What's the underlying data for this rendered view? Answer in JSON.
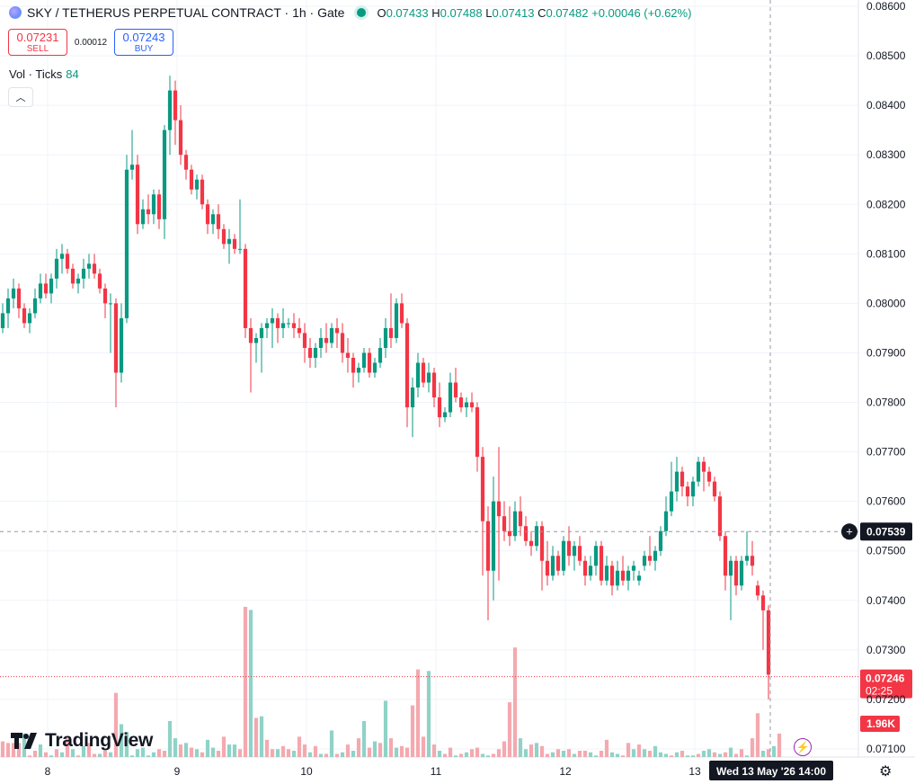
{
  "header": {
    "title": "SKY / TETHERUS PERPETUAL CONTRACT · 1h · Gate",
    "ohlc": [
      {
        "key": "O",
        "value": "0.07433"
      },
      {
        "key": "H",
        "value": "0.07488"
      },
      {
        "key": "L",
        "value": "0.07413"
      },
      {
        "key": "C",
        "value": "0.07482"
      }
    ],
    "change": "+0.00046 (+0.62%)"
  },
  "trade": {
    "sell_price": "0.07231",
    "sell_label": "SELL",
    "spread": "0.00012",
    "buy_price": "0.07243",
    "buy_label": "BUY"
  },
  "indicator": {
    "name": "Vol · Ticks",
    "value": "84"
  },
  "collapse_icon": "chevron-up-icon",
  "branding": {
    "name": "TradingView"
  },
  "colors": {
    "up": "#089981",
    "down": "#f23645",
    "up_vol": "#8fd3c7",
    "down_vol": "#f4a9af"
  },
  "chart_data": {
    "type": "candlestick",
    "interval": "1h",
    "y_ticks": [
      "0.08600",
      "0.08500",
      "0.08400",
      "0.08300",
      "0.08200",
      "0.08100",
      "0.08000",
      "0.07900",
      "0.07800",
      "0.07700",
      "0.07600",
      "0.07500",
      "0.07400",
      "0.07300",
      "0.07200",
      "0.07100"
    ],
    "ylim": [
      0.0705,
      0.0862
    ],
    "x_ticks": [
      "8",
      "9",
      "10",
      "11",
      "12",
      "13"
    ],
    "crosshair_price": "0.07539",
    "crosshair_time": "Wed 13 May '26  14:00",
    "last_price": "0.07246",
    "countdown": "02:25",
    "volume_label": "1.96K",
    "candles": [
      [
        0.0795,
        0.08,
        0.0794,
        0.0798
      ],
      [
        0.0798,
        0.0803,
        0.0795,
        0.0801
      ],
      [
        0.0801,
        0.0805,
        0.0799,
        0.0803
      ],
      [
        0.0803,
        0.0804,
        0.0797,
        0.0799
      ],
      [
        0.0799,
        0.08,
        0.0795,
        0.0796
      ],
      [
        0.0796,
        0.0799,
        0.0794,
        0.0798
      ],
      [
        0.0798,
        0.0803,
        0.0797,
        0.0801
      ],
      [
        0.0801,
        0.0806,
        0.08,
        0.0804
      ],
      [
        0.0804,
        0.0806,
        0.0801,
        0.0802
      ],
      [
        0.0802,
        0.0806,
        0.08,
        0.0805
      ],
      [
        0.0805,
        0.0811,
        0.0803,
        0.0809
      ],
      [
        0.0809,
        0.0812,
        0.0806,
        0.081
      ],
      [
        0.081,
        0.0811,
        0.0806,
        0.0807
      ],
      [
        0.0807,
        0.0808,
        0.0803,
        0.0804
      ],
      [
        0.0804,
        0.0806,
        0.0802,
        0.0805
      ],
      [
        0.0805,
        0.0809,
        0.0803,
        0.0807
      ],
      [
        0.0807,
        0.081,
        0.0805,
        0.0808
      ],
      [
        0.0808,
        0.081,
        0.0805,
        0.0806
      ],
      [
        0.0806,
        0.0807,
        0.0802,
        0.0803
      ],
      [
        0.0803,
        0.0804,
        0.0797,
        0.08
      ],
      [
        0.08,
        0.0802,
        0.079,
        0.08
      ],
      [
        0.08,
        0.0801,
        0.0779,
        0.0786
      ],
      [
        0.0786,
        0.08,
        0.0784,
        0.0797
      ],
      [
        0.0797,
        0.083,
        0.0796,
        0.0827
      ],
      [
        0.0827,
        0.0835,
        0.0825,
        0.0828
      ],
      [
        0.0828,
        0.083,
        0.0814,
        0.0816
      ],
      [
        0.0816,
        0.0821,
        0.0815,
        0.0819
      ],
      [
        0.0819,
        0.0822,
        0.0816,
        0.0818
      ],
      [
        0.0818,
        0.0823,
        0.0816,
        0.0822
      ],
      [
        0.0822,
        0.0823,
        0.0815,
        0.0817
      ],
      [
        0.0817,
        0.0836,
        0.0813,
        0.0835
      ],
      [
        0.0835,
        0.0846,
        0.083,
        0.0843
      ],
      [
        0.0843,
        0.0845,
        0.0832,
        0.0837
      ],
      [
        0.0837,
        0.084,
        0.0828,
        0.083
      ],
      [
        0.083,
        0.0831,
        0.0825,
        0.0827
      ],
      [
        0.0827,
        0.0828,
        0.0822,
        0.0823
      ],
      [
        0.0823,
        0.0826,
        0.0821,
        0.0825
      ],
      [
        0.0825,
        0.0826,
        0.0819,
        0.082
      ],
      [
        0.082,
        0.0821,
        0.0814,
        0.0816
      ],
      [
        0.0816,
        0.0819,
        0.0814,
        0.0818
      ],
      [
        0.0818,
        0.082,
        0.0813,
        0.0815
      ],
      [
        0.0815,
        0.0816,
        0.0811,
        0.0812
      ],
      [
        0.0812,
        0.0815,
        0.0808,
        0.0813
      ],
      [
        0.0813,
        0.0814,
        0.081,
        0.0811
      ],
      [
        0.0811,
        0.0821,
        0.081,
        0.0811
      ],
      [
        0.0811,
        0.0812,
        0.0793,
        0.0795
      ],
      [
        0.0795,
        0.0797,
        0.0782,
        0.0792
      ],
      [
        0.0792,
        0.0794,
        0.0788,
        0.0793
      ],
      [
        0.0793,
        0.0796,
        0.0786,
        0.0795
      ],
      [
        0.0795,
        0.0797,
        0.0793,
        0.0796
      ],
      [
        0.0796,
        0.0799,
        0.0791,
        0.0797
      ],
      [
        0.0797,
        0.0798,
        0.0792,
        0.0795
      ],
      [
        0.0795,
        0.0799,
        0.0793,
        0.0796
      ],
      [
        0.0796,
        0.0797,
        0.0795,
        0.0796
      ],
      [
        0.0796,
        0.0798,
        0.0793,
        0.0795
      ],
      [
        0.0795,
        0.0797,
        0.0793,
        0.0794
      ],
      [
        0.0794,
        0.0796,
        0.0788,
        0.0791
      ],
      [
        0.0791,
        0.0793,
        0.0787,
        0.0789
      ],
      [
        0.0789,
        0.0792,
        0.0787,
        0.0791
      ],
      [
        0.0791,
        0.0795,
        0.0789,
        0.0793
      ],
      [
        0.0793,
        0.0796,
        0.079,
        0.0792
      ],
      [
        0.0792,
        0.0796,
        0.0791,
        0.0795
      ],
      [
        0.0795,
        0.0797,
        0.0791,
        0.0794
      ],
      [
        0.0794,
        0.0796,
        0.0788,
        0.079
      ],
      [
        0.079,
        0.0793,
        0.0786,
        0.0789
      ],
      [
        0.0789,
        0.079,
        0.0783,
        0.0786
      ],
      [
        0.0786,
        0.0788,
        0.0784,
        0.0787
      ],
      [
        0.0787,
        0.0791,
        0.0786,
        0.079
      ],
      [
        0.079,
        0.0791,
        0.0785,
        0.0786
      ],
      [
        0.0786,
        0.0789,
        0.0785,
        0.0788
      ],
      [
        0.0788,
        0.0793,
        0.0787,
        0.0791
      ],
      [
        0.0791,
        0.0797,
        0.0789,
        0.0795
      ],
      [
        0.0795,
        0.0802,
        0.0791,
        0.0793
      ],
      [
        0.0793,
        0.0801,
        0.0792,
        0.08
      ],
      [
        0.08,
        0.0802,
        0.0795,
        0.0796
      ],
      [
        0.0796,
        0.0797,
        0.0775,
        0.0779
      ],
      [
        0.0779,
        0.0785,
        0.0773,
        0.0783
      ],
      [
        0.0783,
        0.079,
        0.0781,
        0.0788
      ],
      [
        0.0788,
        0.0789,
        0.0783,
        0.0784
      ],
      [
        0.0784,
        0.0788,
        0.0782,
        0.0786
      ],
      [
        0.0786,
        0.0787,
        0.0779,
        0.0781
      ],
      [
        0.0781,
        0.0784,
        0.0775,
        0.0777
      ],
      [
        0.0777,
        0.0779,
        0.0776,
        0.0778
      ],
      [
        0.0778,
        0.0786,
        0.0777,
        0.0784
      ],
      [
        0.0784,
        0.0787,
        0.078,
        0.0781
      ],
      [
        0.0781,
        0.0782,
        0.0778,
        0.0779
      ],
      [
        0.0779,
        0.0781,
        0.0777,
        0.078
      ],
      [
        0.078,
        0.0782,
        0.0778,
        0.0779
      ],
      [
        0.0779,
        0.078,
        0.0766,
        0.0769
      ],
      [
        0.0769,
        0.0771,
        0.0745,
        0.0756
      ],
      [
        0.0756,
        0.0759,
        0.0736,
        0.0746
      ],
      [
        0.0746,
        0.0765,
        0.074,
        0.076
      ],
      [
        0.076,
        0.0771,
        0.0744,
        0.0757
      ],
      [
        0.0757,
        0.076,
        0.0752,
        0.0754
      ],
      [
        0.0754,
        0.0759,
        0.0751,
        0.0753
      ],
      [
        0.0753,
        0.076,
        0.0752,
        0.0758
      ],
      [
        0.0758,
        0.0761,
        0.0753,
        0.0755
      ],
      [
        0.0755,
        0.0757,
        0.0751,
        0.0752
      ],
      [
        0.0752,
        0.0754,
        0.0749,
        0.0751
      ],
      [
        0.0751,
        0.0756,
        0.075,
        0.0755
      ],
      [
        0.0755,
        0.0756,
        0.0742,
        0.0748
      ],
      [
        0.0748,
        0.0752,
        0.0743,
        0.0745
      ],
      [
        0.0745,
        0.0751,
        0.0744,
        0.0749
      ],
      [
        0.0749,
        0.075,
        0.0745,
        0.0746
      ],
      [
        0.0746,
        0.0753,
        0.0745,
        0.0752
      ],
      [
        0.0752,
        0.0755,
        0.0747,
        0.0749
      ],
      [
        0.0749,
        0.0752,
        0.0746,
        0.0751
      ],
      [
        0.0751,
        0.0753,
        0.0747,
        0.0748
      ],
      [
        0.0748,
        0.0749,
        0.0743,
        0.0745
      ],
      [
        0.0745,
        0.0749,
        0.0744,
        0.0747
      ],
      [
        0.0747,
        0.0752,
        0.0745,
        0.0751
      ],
      [
        0.0751,
        0.0752,
        0.0743,
        0.0744
      ],
      [
        0.0744,
        0.0749,
        0.0743,
        0.0747
      ],
      [
        0.0747,
        0.0748,
        0.0741,
        0.0743
      ],
      [
        0.0743,
        0.0748,
        0.0742,
        0.0746
      ],
      [
        0.0746,
        0.0749,
        0.0743,
        0.0744
      ],
      [
        0.0744,
        0.0747,
        0.0742,
        0.0746
      ],
      [
        0.0746,
        0.0748,
        0.0744,
        0.0747
      ],
      [
        0.0744,
        0.0746,
        0.0743,
        0.0745
      ],
      [
        0.0747,
        0.075,
        0.0746,
        0.0749
      ],
      [
        0.0749,
        0.0753,
        0.0747,
        0.0748
      ],
      [
        0.0748,
        0.0751,
        0.0746,
        0.075
      ],
      [
        0.075,
        0.0755,
        0.0749,
        0.0754
      ],
      [
        0.0754,
        0.0761,
        0.0753,
        0.0758
      ],
      [
        0.0758,
        0.0768,
        0.0757,
        0.0762
      ],
      [
        0.0762,
        0.0769,
        0.076,
        0.0766
      ],
      [
        0.0766,
        0.0767,
        0.0761,
        0.0763
      ],
      [
        0.0763,
        0.0764,
        0.0759,
        0.0761
      ],
      [
        0.0761,
        0.0765,
        0.0759,
        0.0764
      ],
      [
        0.0764,
        0.0769,
        0.0763,
        0.0768
      ],
      [
        0.0768,
        0.0769,
        0.0762,
        0.0766
      ],
      [
        0.0766,
        0.0767,
        0.0763,
        0.0764
      ],
      [
        0.0764,
        0.0765,
        0.076,
        0.0761
      ],
      [
        0.0761,
        0.0762,
        0.0752,
        0.0753
      ],
      [
        0.0753,
        0.0754,
        0.0742,
        0.0745
      ],
      [
        0.0745,
        0.0749,
        0.0736,
        0.0748
      ],
      [
        0.0748,
        0.0749,
        0.0741,
        0.0743
      ],
      [
        0.0743,
        0.0749,
        0.0742,
        0.0748
      ],
      [
        0.0748,
        0.0754,
        0.0747,
        0.0749
      ],
      [
        0.0749,
        0.0752,
        0.0745,
        0.0747
      ],
      [
        0.0743,
        0.0744,
        0.074,
        0.0741
      ],
      [
        0.0741,
        0.0742,
        0.073,
        0.0738
      ],
      [
        0.0738,
        0.0739,
        0.072,
        0.0725
      ]
    ],
    "volumes": [
      [
        0,
        1
      ],
      [
        0,
        0.9
      ],
      [
        0,
        0.9
      ],
      [
        0,
        0.9
      ],
      [
        1,
        1.5
      ],
      [
        0,
        0.1
      ],
      [
        0,
        0.4
      ],
      [
        1,
        0.8
      ],
      [
        0,
        0.3
      ],
      [
        1,
        0.1
      ],
      [
        0,
        0.5
      ],
      [
        1,
        0.3
      ],
      [
        0,
        1.2
      ],
      [
        1,
        0.5
      ],
      [
        0,
        0.1
      ],
      [
        1,
        0.7
      ],
      [
        0,
        0.9
      ],
      [
        0,
        0.2
      ],
      [
        1,
        0.2
      ],
      [
        0,
        0.4
      ],
      [
        1,
        0.3
      ],
      [
        0,
        4.1
      ],
      [
        1,
        2.1
      ],
      [
        1,
        1.6
      ],
      [
        1,
        0.1
      ],
      [
        1,
        0.5
      ],
      [
        1,
        0.6
      ],
      [
        1,
        0.1
      ],
      [
        1,
        0.3
      ],
      [
        0,
        0.5
      ],
      [
        0,
        0.4
      ],
      [
        1,
        2.3
      ],
      [
        1,
        1.2
      ],
      [
        0,
        0.8
      ],
      [
        1,
        0.9
      ],
      [
        0,
        0.6
      ],
      [
        1,
        0.5
      ],
      [
        0,
        0.3
      ],
      [
        1,
        1.1
      ],
      [
        1,
        0.6
      ],
      [
        0,
        0.4
      ],
      [
        0,
        1.3
      ],
      [
        1,
        0.8
      ],
      [
        1,
        0.8
      ],
      [
        0,
        0.5
      ],
      [
        0,
        9.6
      ],
      [
        1,
        9.4
      ],
      [
        0,
        2.5
      ],
      [
        1,
        2.6
      ],
      [
        0,
        1.1
      ],
      [
        0,
        0.5
      ],
      [
        1,
        0.5
      ],
      [
        0,
        0.7
      ],
      [
        0,
        0.5
      ],
      [
        1,
        0.4
      ],
      [
        0,
        1.3
      ],
      [
        0,
        0.8
      ],
      [
        1,
        0.3
      ],
      [
        0,
        0.7
      ],
      [
        1,
        0.2
      ],
      [
        0,
        0.2
      ],
      [
        1,
        1.7
      ],
      [
        0,
        0.2
      ],
      [
        1,
        0.3
      ],
      [
        0,
        0.8
      ],
      [
        1,
        0.4
      ],
      [
        0,
        1.2
      ],
      [
        1,
        2.3
      ],
      [
        0,
        0.6
      ],
      [
        1,
        1.0
      ],
      [
        0,
        0.9
      ],
      [
        1,
        3.6
      ],
      [
        0,
        1.2
      ],
      [
        1,
        0.6
      ],
      [
        0,
        0.7
      ],
      [
        0,
        0.6
      ],
      [
        0,
        3.3
      ],
      [
        0,
        5.6
      ],
      [
        0,
        1.3
      ],
      [
        1,
        5.5
      ],
      [
        0,
        0.8
      ],
      [
        1,
        0.4
      ],
      [
        0,
        0.2
      ],
      [
        0,
        0.6
      ],
      [
        1,
        0.1
      ],
      [
        0,
        0.2
      ],
      [
        1,
        0.3
      ],
      [
        0,
        0.5
      ],
      [
        0,
        0.6
      ],
      [
        1,
        0.2
      ],
      [
        1,
        0.1
      ],
      [
        0,
        0.2
      ],
      [
        0,
        0.5
      ],
      [
        0,
        1.0
      ],
      [
        0,
        3.5
      ],
      [
        0,
        7.0
      ],
      [
        1,
        1.2
      ],
      [
        1,
        0.5
      ],
      [
        0,
        0.8
      ],
      [
        1,
        0.9
      ],
      [
        0,
        0.7
      ],
      [
        0,
        0.2
      ],
      [
        1,
        0.3
      ],
      [
        0,
        0.5
      ],
      [
        1,
        0.4
      ],
      [
        0,
        0.5
      ],
      [
        1,
        0.2
      ],
      [
        0,
        0.4
      ],
      [
        0,
        0.4
      ],
      [
        1,
        0.3
      ],
      [
        1,
        0.1
      ],
      [
        0,
        0.4
      ],
      [
        0,
        1.1
      ],
      [
        1,
        0.3
      ],
      [
        1,
        0.2
      ],
      [
        0,
        0.1
      ],
      [
        0,
        0.9
      ],
      [
        1,
        0.5
      ],
      [
        0,
        0.8
      ],
      [
        1,
        0.5
      ],
      [
        0,
        0.4
      ],
      [
        1,
        0.7
      ],
      [
        1,
        0.3
      ],
      [
        1,
        0.2
      ],
      [
        0,
        0.1
      ],
      [
        1,
        0.3
      ],
      [
        0,
        0.4
      ],
      [
        1,
        0.1
      ],
      [
        1,
        0.1
      ],
      [
        0,
        0.2
      ],
      [
        1,
        0.4
      ],
      [
        1,
        0.5
      ],
      [
        0,
        0.3
      ],
      [
        1,
        0.2
      ],
      [
        0,
        0.3
      ],
      [
        1,
        0.6
      ],
      [
        0,
        0.2
      ],
      [
        0,
        0.5
      ],
      [
        1,
        0.1
      ],
      [
        0,
        1.2
      ],
      [
        0,
        2.8
      ],
      [
        1,
        0.4
      ],
      [
        0,
        0.5
      ],
      [
        1,
        0.7
      ],
      [
        0,
        1.5
      ]
    ]
  }
}
